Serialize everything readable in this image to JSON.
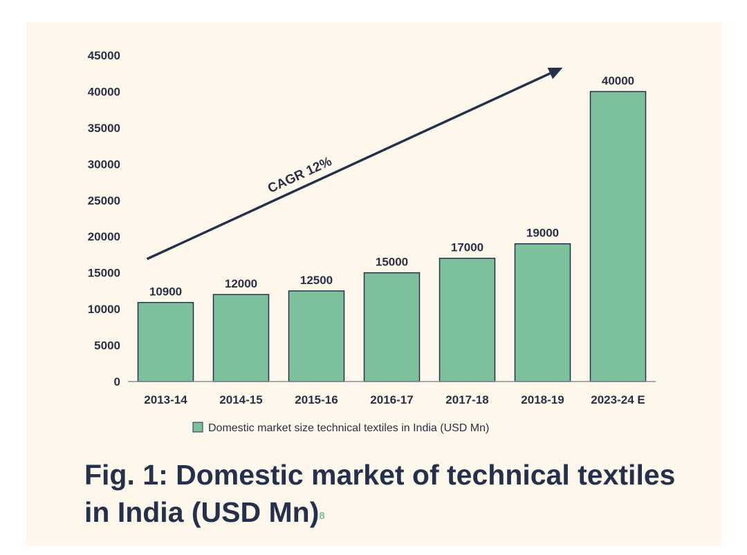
{
  "chart_data": {
    "type": "bar",
    "categories": [
      "2013-14",
      "2014-15",
      "2015-16",
      "2016-17",
      "2017-18",
      "2018-19",
      "2023-24 E"
    ],
    "values": [
      10900,
      12000,
      12500,
      15000,
      17000,
      19000,
      40000
    ],
    "series": [
      {
        "name": "Domestic market size technical textiles in India (USD Mn)",
        "values": [
          10900,
          12000,
          12500,
          15000,
          17000,
          19000,
          40000
        ]
      }
    ],
    "yticks": [
      0,
      5000,
      10000,
      15000,
      20000,
      25000,
      30000,
      35000,
      40000,
      45000
    ],
    "ylim": [
      0,
      45000
    ],
    "grid": false,
    "annotation": "CAGR 12%",
    "legend_position": "bottom-center",
    "bar_color": "#7cc19c",
    "bar_edge_color": "#25304a",
    "text_color": "#2a2f45"
  },
  "caption": {
    "text": "Fig. 1: Domestic market of technical textiles in India (USD Mn)",
    "footnote": "8"
  }
}
